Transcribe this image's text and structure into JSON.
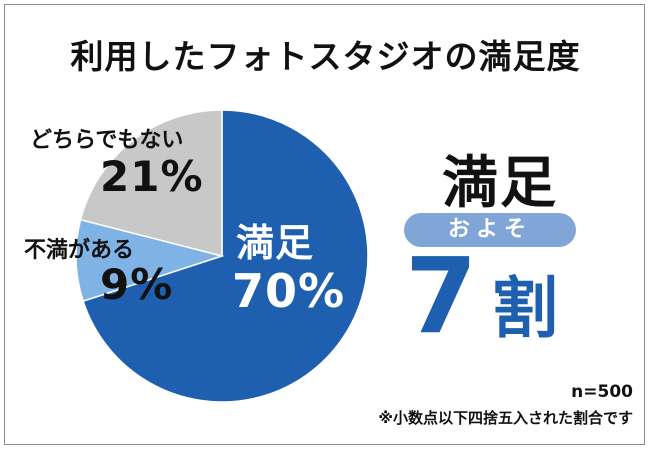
{
  "title": "利用したフォトスタジオの満足度",
  "side": {
    "heading": "満足",
    "pill": "およそ",
    "big_number": "7",
    "big_unit": "割"
  },
  "notes": {
    "sample": "n=500",
    "rounding": "※小数点以下四捨五入された割合です"
  },
  "colors": {
    "satisfied": "#1f5fb0",
    "dissatisfied": "#7fb2e5",
    "neutral": "#c8c8c8",
    "accent": "#1f5fb0",
    "pill": "#7fa6d6"
  },
  "chart_data": {
    "type": "pie",
    "title": "利用したフォトスタジオの満足度",
    "slices": [
      {
        "label": "満足",
        "value": 70,
        "value_label": "70%",
        "color": "#1f5fb0"
      },
      {
        "label": "不満がある",
        "value": 9,
        "value_label": "9%",
        "color": "#7fb2e5"
      },
      {
        "label": "どちらでもない",
        "value": 21,
        "value_label": "21%",
        "color": "#c8c8c8"
      }
    ],
    "start": "top",
    "direction": "clockwise"
  }
}
